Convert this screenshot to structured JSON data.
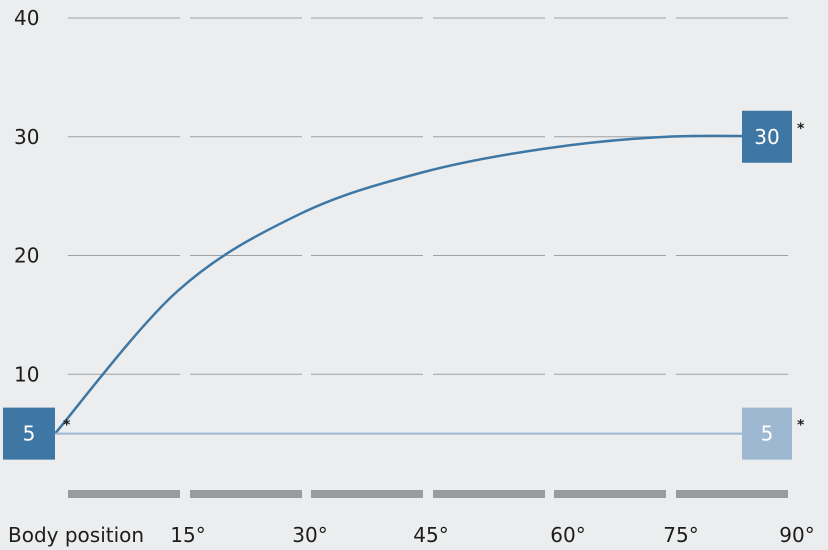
{
  "chart_data": {
    "type": "line",
    "title": "",
    "xlabel": "Body position",
    "ylabel": "",
    "x_categories": [
      "15°",
      "30°",
      "45°",
      "60°",
      "75°",
      "90°"
    ],
    "ylim": [
      0,
      40
    ],
    "y_ticks": [
      10,
      20,
      30,
      40
    ],
    "grid": true,
    "series": [
      {
        "color": "#3e77a4",
        "x": [
          0,
          15,
          30,
          45,
          60,
          75,
          90
        ],
        "values": [
          5,
          17,
          23.5,
          27,
          29,
          30,
          30
        ],
        "start_label": "5",
        "end_label": "30",
        "start_marker": "*",
        "end_marker": "*"
      },
      {
        "color": "#9db8d0",
        "x": [
          0,
          90
        ],
        "values": [
          5,
          5
        ],
        "start_label": "",
        "end_label": "5",
        "end_marker": "*"
      }
    ]
  },
  "colors": {
    "grid": "#9fa1a2",
    "baseline_bar": "#9a9b9c",
    "dark_box": "#3e77a4",
    "light_box": "#9db8d0"
  }
}
